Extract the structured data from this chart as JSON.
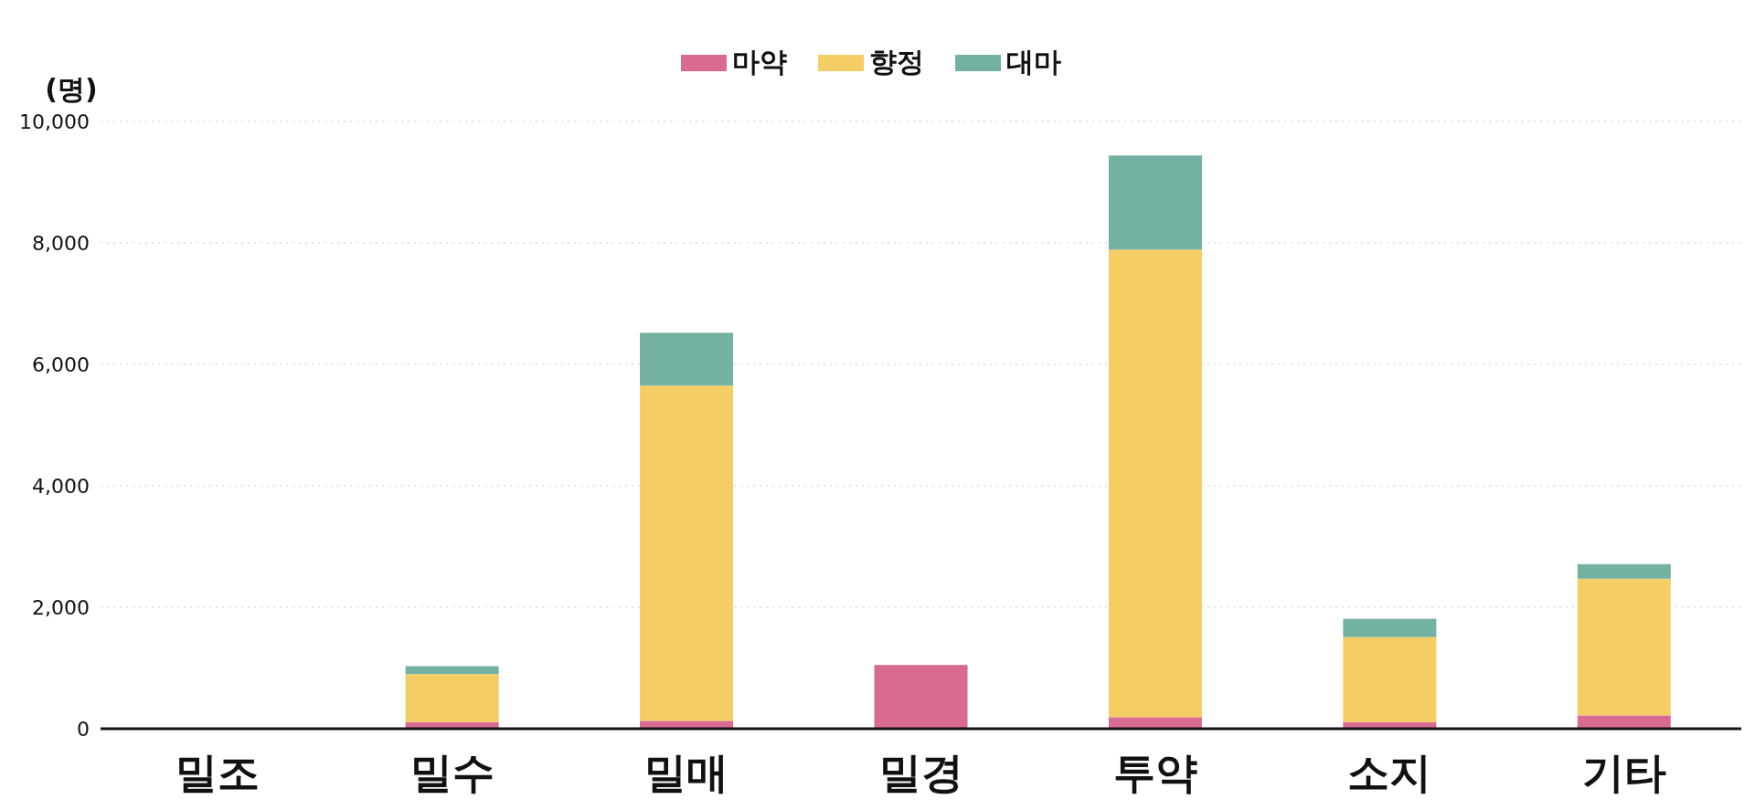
{
  "chart_data": {
    "type": "bar",
    "stacked": true,
    "ylabel": "(명)",
    "categories": [
      "밀조",
      "밀수",
      "밀매",
      "밀경",
      "투약",
      "소지",
      "기타"
    ],
    "series": [
      {
        "name": "마약",
        "color": "#d96b93",
        "values": [
          0,
          110,
          130,
          1050,
          190,
          110,
          220
        ]
      },
      {
        "name": "향정",
        "color": "#f4ce64",
        "values": [
          0,
          790,
          5520,
          0,
          7700,
          1400,
          2250
        ]
      },
      {
        "name": "대마",
        "color": "#73b1a3",
        "values": [
          0,
          130,
          870,
          0,
          1550,
          300,
          240
        ]
      }
    ],
    "ylim": [
      0,
      10000
    ],
    "yticks": [
      {
        "value": 0,
        "label": "0"
      },
      {
        "value": 2000,
        "label": "2,000"
      },
      {
        "value": 4000,
        "label": "4,000"
      },
      {
        "value": 6000,
        "label": "6,000"
      },
      {
        "value": 8000,
        "label": "8,000"
      },
      {
        "value": 10000,
        "label": "10,000"
      }
    ],
    "grid": "y",
    "legend": "top"
  }
}
